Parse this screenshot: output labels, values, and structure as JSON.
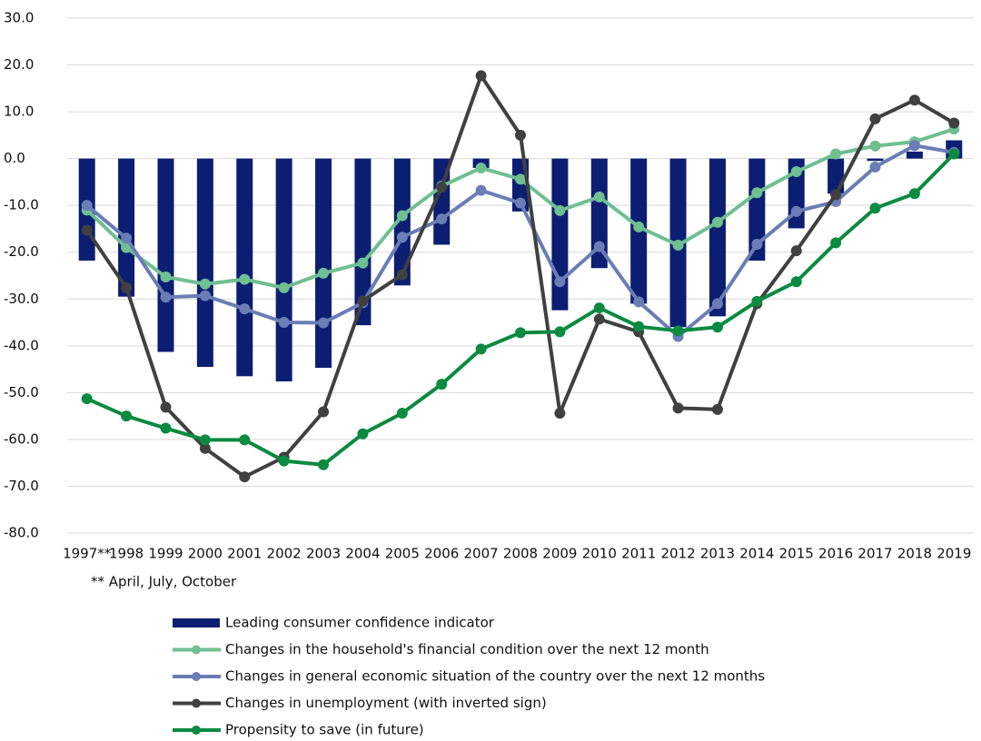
{
  "chart_data": {
    "type": "bar",
    "categories": [
      "1997**",
      "1998",
      "1999",
      "2000",
      "2001",
      "2002",
      "2003",
      "2004",
      "2005",
      "2006",
      "2007",
      "2008",
      "2009",
      "2010",
      "2011",
      "2012",
      "2013",
      "2014",
      "2015",
      "2016",
      "2017",
      "2018",
      "2019"
    ],
    "series": [
      {
        "name": "Leading consumer confidence indicator",
        "type": "bar",
        "color": "#0c1e72",
        "values": [
          -21.8,
          -29.5,
          -41.3,
          -44.5,
          -46.5,
          -47.6,
          -44.7,
          -35.6,
          -27.1,
          -18.4,
          -2,
          -11.3,
          -32.4,
          -23.4,
          -31,
          -36,
          -33.7,
          -21.8,
          -14.9,
          -7.5,
          -0.5,
          1.5,
          3.9
        ]
      },
      {
        "name": "Changes in the household's financial condition over the next 12 month",
        "type": "line",
        "color": "#6fbf91",
        "values": [
          -11,
          -19,
          -25.3,
          -26.8,
          -25.8,
          -27.6,
          -24.5,
          -22.3,
          -12.2,
          -5.9,
          -2,
          -4.4,
          -11.1,
          -8.2,
          -14.6,
          -18.5,
          -13.6,
          -7.3,
          -2.8,
          1,
          2.7,
          3.6,
          6.3
        ]
      },
      {
        "name": "Changes in general economic situation of the country over the next 12 months",
        "type": "line",
        "color": "#6a7db5",
        "values": [
          -10,
          -17,
          -29.6,
          -29.3,
          -32.1,
          -35,
          -35.1,
          -30.8,
          -16.8,
          -12.9,
          -6.8,
          -9.5,
          -26.3,
          -18.8,
          -30.6,
          -38,
          -31,
          -18.3,
          -11.3,
          -9.2,
          -1.8,
          2.8,
          1.3
        ]
      },
      {
        "name": "Changes in unemployment (with inverted sign)",
        "type": "line",
        "color": "#404040",
        "values": [
          -15.3,
          -27.6,
          -53.1,
          -61.9,
          -68,
          -63.8,
          -54.1,
          -30.4,
          -24.8,
          -6.1,
          17.7,
          5,
          -54.4,
          -34.3,
          -37,
          -53.3,
          -53.6,
          -31,
          -19.7,
          -7.7,
          8.5,
          12.5,
          7.6
        ]
      },
      {
        "name": "Propensity to save (in future)",
        "type": "line",
        "color": "#0b8a40",
        "values": [
          -51.3,
          -55,
          -57.6,
          -60.1,
          -60.1,
          -64.6,
          -65.4,
          -58.8,
          -54.4,
          -48.2,
          -40.7,
          -37.2,
          -37,
          -31.9,
          -35.9,
          -36.8,
          -36,
          -30.5,
          -26.3,
          -18,
          -10.6,
          -7.5,
          1
        ]
      }
    ],
    "ylim": [
      -80,
      30
    ],
    "yticks": [
      {
        "value": -80,
        "label": "-80.0"
      },
      {
        "value": -70,
        "label": "-70.0"
      },
      {
        "value": -60,
        "label": "-60.0"
      },
      {
        "value": -50,
        "label": "-50.0"
      },
      {
        "value": -40,
        "label": "-40.0"
      },
      {
        "value": -30,
        "label": "-30.0"
      },
      {
        "value": -20,
        "label": "-20.0"
      },
      {
        "value": -10,
        "label": "-10.0"
      },
      {
        "value": 0,
        "label": "0.0"
      },
      {
        "value": 10,
        "label": "10.0"
      },
      {
        "value": 20,
        "label": "20.0"
      },
      {
        "value": 30,
        "label": "30.0"
      }
    ],
    "grid": true,
    "note": "** April, July, October"
  }
}
